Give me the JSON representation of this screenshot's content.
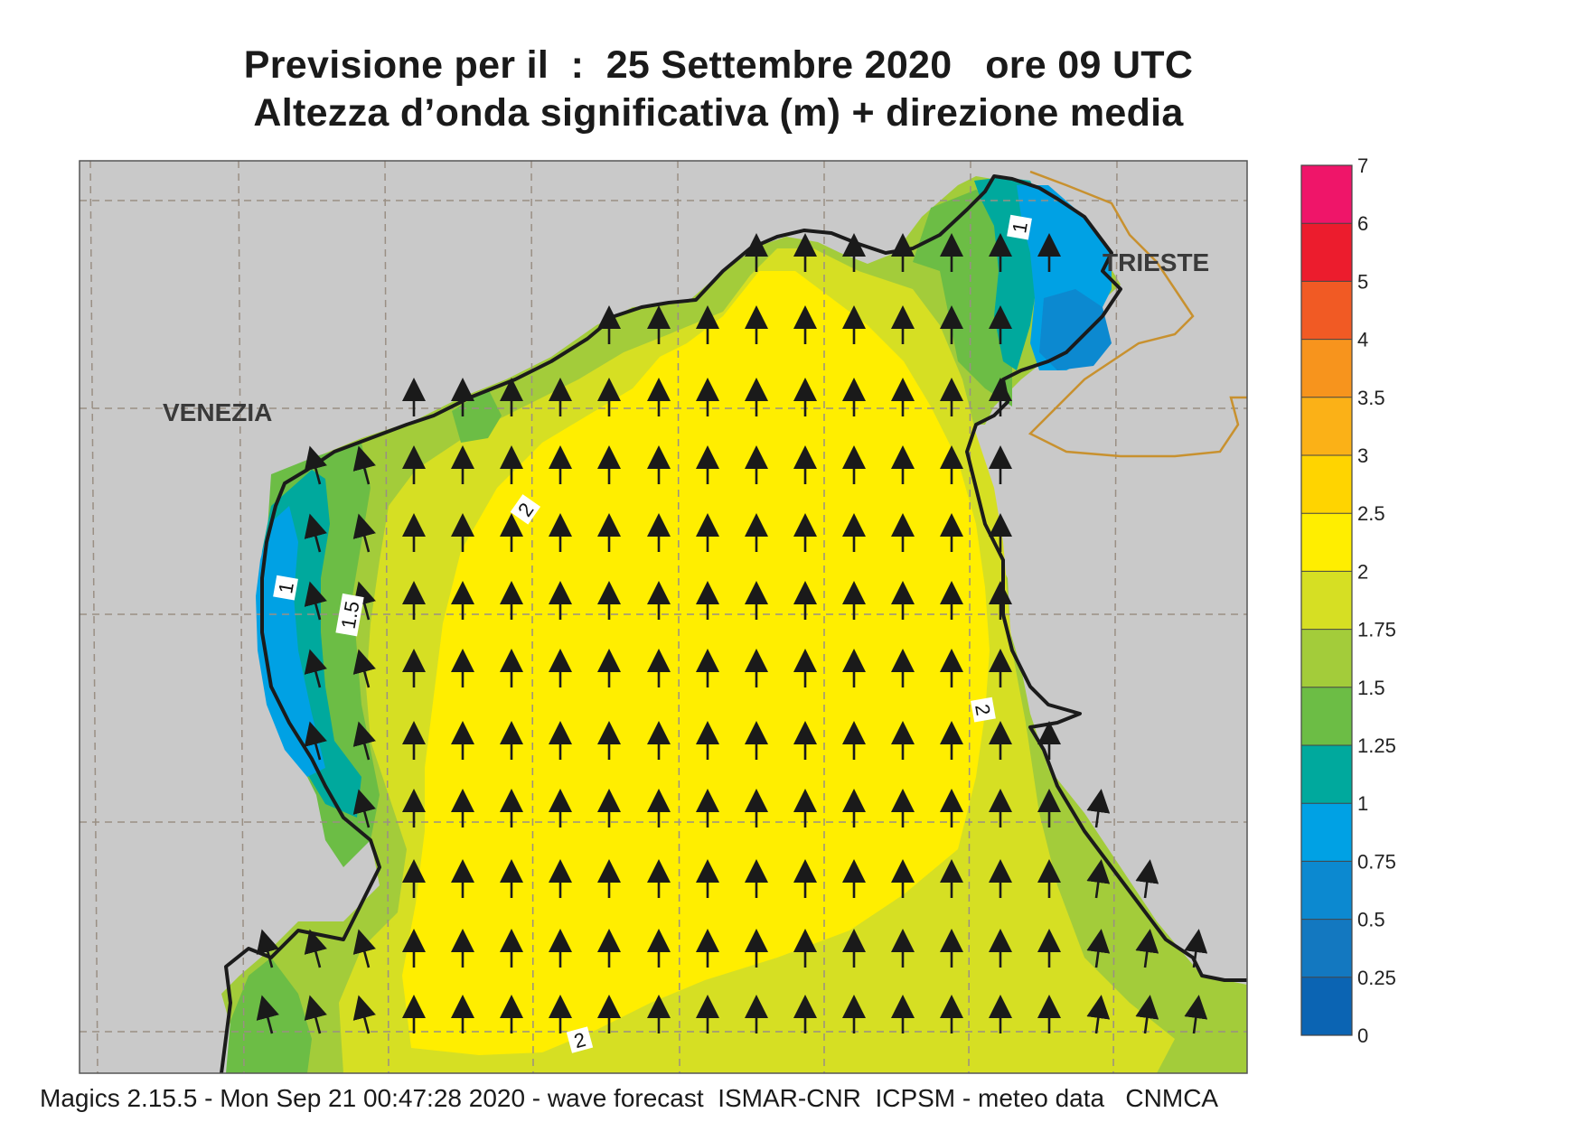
{
  "header": {
    "title_line1": "Previsione per il  :  25 Settembre 2020   ore 09 UTC",
    "title_line2": "Altezza d’onda significativa (m) + direzione media"
  },
  "map": {
    "place_labels": [
      "VENEZIA",
      "TRIESTE"
    ],
    "contour_labels": [
      "1",
      "1.5",
      "2",
      "2",
      "2",
      "1"
    ],
    "arrow_direction": "north",
    "colors": {
      "land": "#c9c9c9",
      "grid": "#9a8f84",
      "coast": "#1b1b1b",
      "border": "#c8912f",
      "arrow": "#1a1a1a"
    }
  },
  "legend": {
    "ticks": [
      "7",
      "6",
      "5",
      "4",
      "3.5",
      "3",
      "2.5",
      "2",
      "1.75",
      "1.5",
      "1.25",
      "1",
      "0.75",
      "0.5",
      "0.25",
      "0"
    ],
    "colors": [
      "#ef1569",
      "#ec1c2d",
      "#f15a24",
      "#f7941d",
      "#fbb117",
      "#ffd400",
      "#ffee00",
      "#d6df23",
      "#a3cc3a",
      "#6cbd45",
      "#00a99d",
      "#00a1e4",
      "#0c89d0",
      "#1378c0",
      "#0b64b3"
    ]
  },
  "footer": {
    "text": "Magics 2.15.5 - Mon Sep 21 00:47:28 2020 - wave forecast  ISMAR-CNR  ICPSM - meteo data   CNMCA"
  }
}
